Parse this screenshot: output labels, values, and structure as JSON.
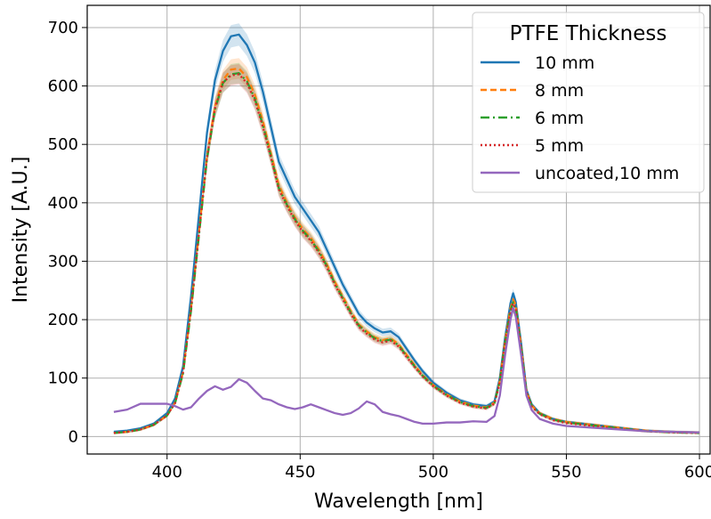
{
  "chart_data": {
    "type": "line",
    "title": "",
    "xlabel": "Wavelength [nm]",
    "ylabel": "Intensity [A.U.]",
    "xlim": [
      370,
      604
    ],
    "ylim": [
      -30,
      738
    ],
    "xticks": [
      400,
      450,
      500,
      550,
      600
    ],
    "yticks": [
      0,
      100,
      200,
      300,
      400,
      500,
      600,
      700
    ],
    "grid": true,
    "legend": {
      "title": "PTFE Thickness",
      "placement": "top-right"
    },
    "x": [
      380,
      385,
      390,
      395,
      400,
      403,
      406,
      409,
      412,
      415,
      418,
      421,
      424,
      427,
      430,
      433,
      436,
      439,
      442,
      445,
      448,
      451,
      454,
      457,
      460,
      463,
      466,
      469,
      472,
      475,
      478,
      481,
      484,
      487,
      490,
      493,
      496,
      500,
      505,
      510,
      515,
      520,
      523,
      525,
      527,
      529,
      530,
      531,
      533,
      535,
      537,
      540,
      545,
      550,
      560,
      570,
      580,
      590,
      600
    ],
    "series": [
      {
        "name": "10 mm",
        "color": "#1f77b4",
        "dash": "solid",
        "band": true,
        "values": [
          8,
          10,
          14,
          22,
          40,
          65,
          120,
          240,
          380,
          520,
          610,
          660,
          685,
          688,
          670,
          640,
          590,
          530,
          470,
          440,
          410,
          390,
          370,
          350,
          320,
          290,
          260,
          235,
          210,
          195,
          185,
          178,
          180,
          170,
          150,
          130,
          112,
          92,
          75,
          62,
          55,
          52,
          60,
          100,
          170,
          228,
          245,
          230,
          160,
          80,
          55,
          40,
          30,
          25,
          20,
          15,
          10,
          8,
          7
        ]
      },
      {
        "name": "8 mm",
        "color": "#ff7f0e",
        "dash": "7,4",
        "band": true,
        "values": [
          6,
          8,
          12,
          20,
          36,
          58,
          110,
          220,
          350,
          480,
          565,
          610,
          628,
          630,
          615,
          585,
          540,
          485,
          430,
          400,
          375,
          355,
          340,
          320,
          295,
          265,
          240,
          215,
          192,
          180,
          170,
          165,
          168,
          158,
          140,
          122,
          105,
          88,
          72,
          60,
          53,
          50,
          58,
          95,
          165,
          220,
          235,
          225,
          155,
          78,
          53,
          40,
          30,
          25,
          20,
          15,
          10,
          8,
          7
        ]
      },
      {
        "name": "6 mm",
        "color": "#2ca02c",
        "dash": "10,4,2,4",
        "band": true,
        "values": [
          6,
          8,
          12,
          20,
          36,
          57,
          108,
          215,
          345,
          475,
          560,
          605,
          620,
          622,
          608,
          578,
          533,
          480,
          425,
          397,
          372,
          352,
          337,
          317,
          292,
          262,
          237,
          212,
          190,
          178,
          168,
          163,
          166,
          156,
          138,
          120,
          104,
          87,
          71,
          59,
          52,
          49,
          57,
          94,
          162,
          215,
          230,
          220,
          152,
          77,
          52,
          39,
          29,
          24,
          19,
          14,
          9,
          7,
          6
        ]
      },
      {
        "name": "5 mm",
        "color": "#d62728",
        "dash": "2,3",
        "band": true,
        "values": [
          6,
          8,
          12,
          20,
          36,
          57,
          110,
          218,
          348,
          478,
          562,
          606,
          618,
          620,
          605,
          575,
          530,
          478,
          423,
          395,
          370,
          350,
          335,
          315,
          290,
          260,
          235,
          210,
          188,
          176,
          166,
          161,
          164,
          154,
          136,
          119,
          103,
          86,
          70,
          58,
          51,
          48,
          56,
          92,
          160,
          212,
          228,
          218,
          150,
          76,
          51,
          38,
          28,
          23,
          18,
          13,
          9,
          7,
          6
        ]
      },
      {
        "name": "uncoated,10 mm",
        "color": "#9467bd",
        "dash": "solid",
        "band": false,
        "values": [
          42,
          46,
          56,
          56,
          56,
          52,
          46,
          50,
          65,
          78,
          86,
          80,
          85,
          98,
          92,
          78,
          65,
          62,
          55,
          50,
          47,
          50,
          55,
          50,
          45,
          40,
          37,
          40,
          48,
          60,
          55,
          42,
          38,
          35,
          30,
          25,
          22,
          22,
          24,
          24,
          26,
          25,
          35,
          70,
          140,
          200,
          220,
          205,
          140,
          70,
          45,
          30,
          22,
          18,
          15,
          12,
          9,
          8,
          7
        ]
      }
    ]
  }
}
